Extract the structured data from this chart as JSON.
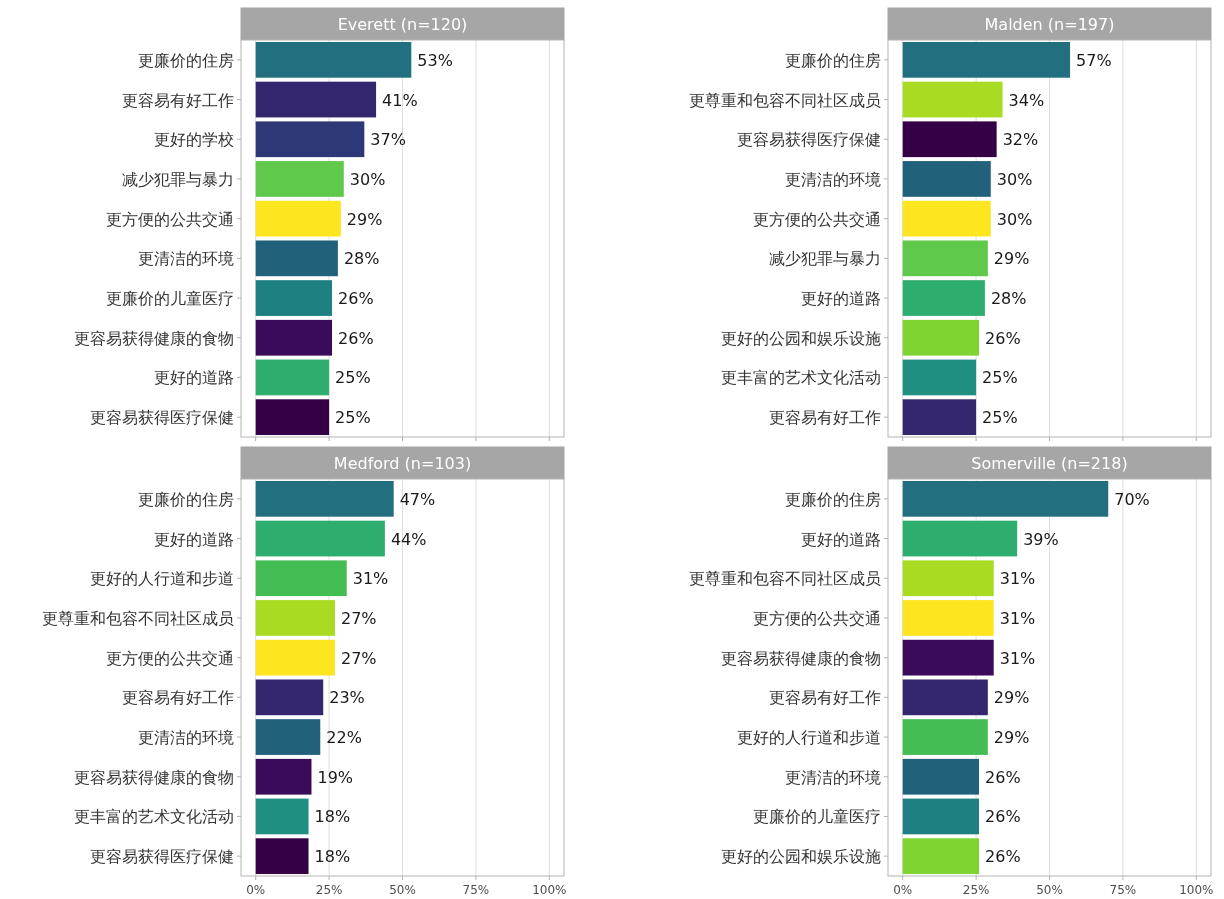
{
  "chart_data": [
    {
      "type": "bar",
      "orientation": "horizontal",
      "title": "Everett (n=120)",
      "categories": [
        "更廉价的住房",
        "更容易有好工作",
        "更好的学校",
        "减少犯罪与暴力",
        "更方便的公共交通",
        "更清洁的环境",
        "更廉价的儿童医疗",
        "更容易获得健康的食物",
        "更好的道路",
        "更容易获得医疗保健"
      ],
      "values": [
        53,
        41,
        37,
        30,
        29,
        28,
        26,
        26,
        25,
        25
      ],
      "value_labels": [
        "53%",
        "41%",
        "37%",
        "30%",
        "29%",
        "28%",
        "26%",
        "26%",
        "25%",
        "25%"
      ],
      "colors": [
        "#22707f",
        "#33266e",
        "#2e3877",
        "#60c84a",
        "#fde51f",
        "#22617c",
        "#1e8080",
        "#3a0b5a",
        "#2eae6e",
        "#360046"
      ],
      "xlim": [
        -5,
        105
      ],
      "xticks": [
        {
          "value": 0,
          "label": null
        },
        {
          "value": 25,
          "label": null
        },
        {
          "value": 50,
          "label": null
        },
        {
          "value": 75,
          "label": null
        },
        {
          "value": 100,
          "label": null
        }
      ],
      "grid": "x",
      "tick_labels": "y"
    },
    {
      "type": "bar",
      "orientation": "horizontal",
      "title": "Malden (n=197)",
      "categories": [
        "更廉价的住房",
        "更尊重和包容不同社区成员",
        "更容易获得医疗保健",
        "更清洁的环境",
        "更方便的公共交通",
        "减少犯罪与暴力",
        "更好的道路",
        "更好的公园和娱乐设施",
        "更丰富的艺术文化活动",
        "更容易有好工作"
      ],
      "values": [
        57,
        34,
        32,
        30,
        30,
        29,
        28,
        26,
        25,
        25
      ],
      "value_labels": [
        "57%",
        "34%",
        "32%",
        "30%",
        "30%",
        "29%",
        "28%",
        "26%",
        "25%",
        "25%"
      ],
      "colors": [
        "#22707f",
        "#a8db22",
        "#360046",
        "#22617c",
        "#fde51f",
        "#60c84a",
        "#2eae6e",
        "#80d432",
        "#1f8f82",
        "#33266e"
      ],
      "xlim": [
        -5,
        105
      ],
      "xticks": [
        {
          "value": 0,
          "label": null
        },
        {
          "value": 25,
          "label": null
        },
        {
          "value": 50,
          "label": null
        },
        {
          "value": 75,
          "label": null
        },
        {
          "value": 100,
          "label": null
        }
      ],
      "grid": "x",
      "tick_labels": "y"
    },
    {
      "type": "bar",
      "orientation": "horizontal",
      "title": "Medford (n=103)",
      "categories": [
        "更廉价的住房",
        "更好的道路",
        "更好的人行道和步道",
        "更尊重和包容不同社区成员",
        "更方便的公共交通",
        "更容易有好工作",
        "更清洁的环境",
        "更容易获得健康的食物",
        "更丰富的艺术文化活动",
        "更容易获得医疗保健"
      ],
      "values": [
        47,
        44,
        31,
        27,
        27,
        23,
        22,
        19,
        18,
        18
      ],
      "value_labels": [
        "47%",
        "44%",
        "31%",
        "27%",
        "27%",
        "23%",
        "22%",
        "19%",
        "18%",
        "18%"
      ],
      "colors": [
        "#22707f",
        "#2eae6e",
        "#44bd55",
        "#a8db22",
        "#fde51f",
        "#33266e",
        "#22617c",
        "#3a0b5a",
        "#1f8f82",
        "#360046"
      ],
      "xlim": [
        -5,
        105
      ],
      "xticks": [
        {
          "value": 0,
          "label": "0%"
        },
        {
          "value": 25,
          "label": "25%"
        },
        {
          "value": 50,
          "label": "50%"
        },
        {
          "value": 75,
          "label": "75%"
        },
        {
          "value": 100,
          "label": "100%"
        }
      ],
      "grid": "x"
    },
    {
      "type": "bar",
      "orientation": "horizontal",
      "title": "Somerville (n=218)",
      "categories": [
        "更廉价的住房",
        "更好的道路",
        "更尊重和包容不同社区成员",
        "更方便的公共交通",
        "更容易获得健康的食物",
        "更容易有好工作",
        "更好的人行道和步道",
        "更清洁的环境",
        "更廉价的儿童医疗",
        "更好的公园和娱乐设施"
      ],
      "values": [
        70,
        39,
        31,
        31,
        31,
        29,
        29,
        26,
        26,
        26
      ],
      "value_labels": [
        "70%",
        "39%",
        "31%",
        "31%",
        "31%",
        "29%",
        "29%",
        "26%",
        "26%",
        "26%"
      ],
      "colors": [
        "#22707f",
        "#2eae6e",
        "#a8db22",
        "#fde51f",
        "#3a0b5a",
        "#33266e",
        "#44bd55",
        "#22617c",
        "#1e8080",
        "#80d432"
      ],
      "xlim": [
        -5,
        105
      ],
      "xticks": [
        {
          "value": 0,
          "label": "0%"
        },
        {
          "value": 25,
          "label": "25%"
        },
        {
          "value": 50,
          "label": "50%"
        },
        {
          "value": 75,
          "label": "75%"
        },
        {
          "value": 100,
          "label": "100%"
        }
      ],
      "grid": "x"
    }
  ]
}
